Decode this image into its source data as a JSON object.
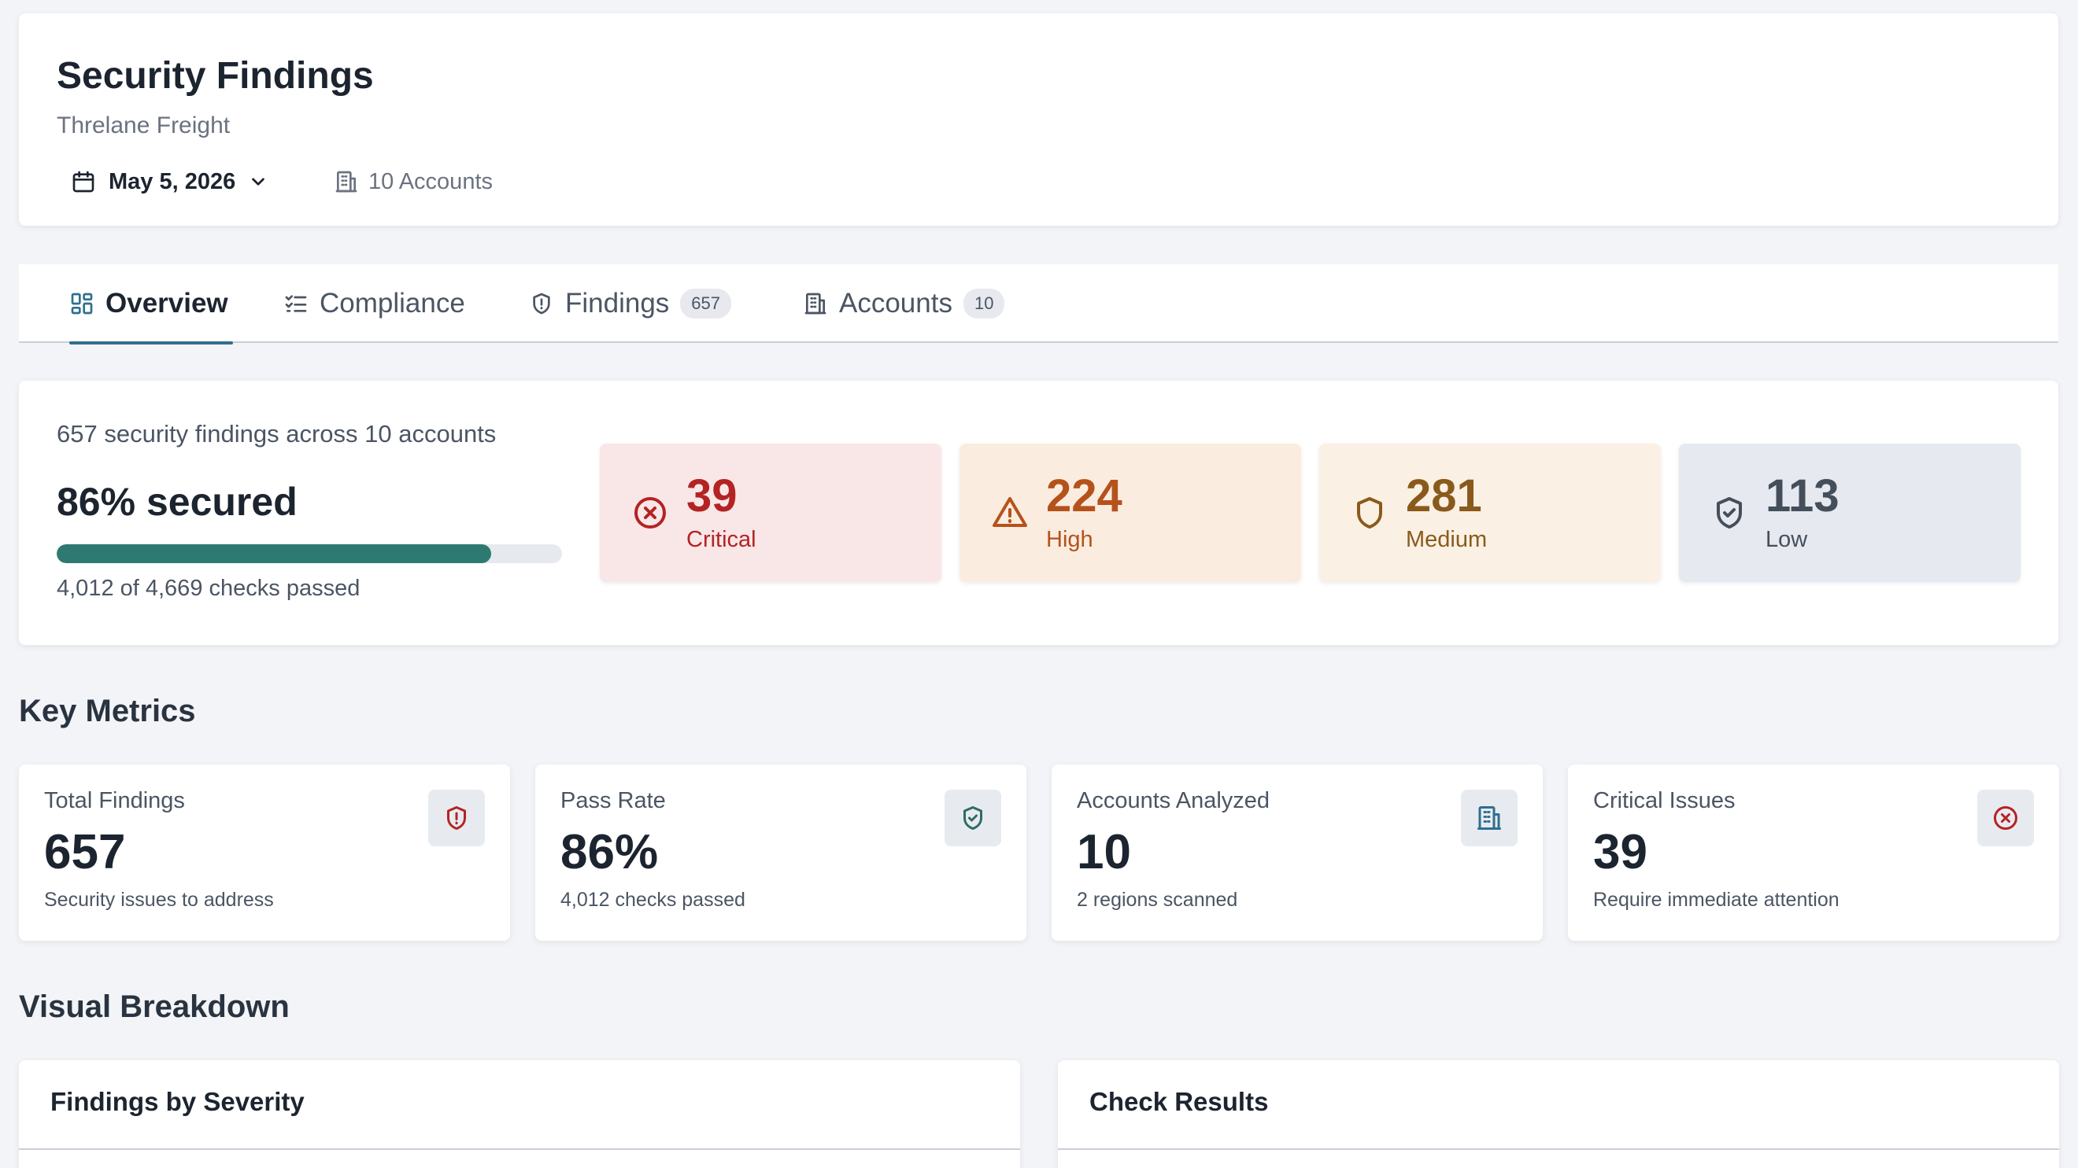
{
  "header": {
    "title": "Security Findings",
    "organization": "Threlane Freight",
    "date": "May 5, 2026",
    "accounts_label": "10 Accounts"
  },
  "tabs": [
    {
      "label": "Overview",
      "active": true,
      "icon": "dashboard-icon"
    },
    {
      "label": "Compliance",
      "icon": "checklist-icon"
    },
    {
      "label": "Findings",
      "badge": "657",
      "icon": "shield-alert-icon"
    },
    {
      "label": "Accounts",
      "badge": "10",
      "icon": "building-icon"
    }
  ],
  "summary": {
    "headline": "657 security findings across 10 accounts",
    "secured_label": "86% secured",
    "secured_progress": 0.86,
    "checks_text": "4,012 of 4,669 checks passed",
    "severities": [
      {
        "value": "39",
        "label": "Critical",
        "icon": "x-circle-icon",
        "color": "#b42323"
      },
      {
        "value": "224",
        "label": "High",
        "icon": "warning-triangle-icon",
        "color": "#b5521b"
      },
      {
        "value": "281",
        "label": "Medium",
        "icon": "shield-icon",
        "color": "#8a5a1d"
      },
      {
        "value": "113",
        "label": "Low",
        "icon": "shield-check-icon",
        "color": "#454f5c"
      }
    ]
  },
  "key_metrics": {
    "title": "Key Metrics",
    "cards": [
      {
        "label": "Total Findings",
        "value": "657",
        "sub": "Security issues to address",
        "icon": "shield-alert-icon"
      },
      {
        "label": "Pass Rate",
        "value": "86%",
        "sub": "4,012 checks passed",
        "icon": "shield-check-icon"
      },
      {
        "label": "Accounts Analyzed",
        "value": "10",
        "sub": "2 regions scanned",
        "icon": "building-icon"
      },
      {
        "label": "Critical Issues",
        "value": "39",
        "sub": "Require immediate attention",
        "icon": "x-circle-icon"
      }
    ]
  },
  "visual_breakdown": {
    "title": "Visual Breakdown",
    "panels": [
      {
        "title": "Findings by Severity"
      },
      {
        "title": "Check Results"
      }
    ]
  },
  "colors": {
    "accent": "#2f6f8f",
    "progress": "#2e7a72",
    "critical": "#b42323",
    "high": "#b5521b",
    "medium": "#8a5a1d",
    "low": "#454f5c"
  }
}
